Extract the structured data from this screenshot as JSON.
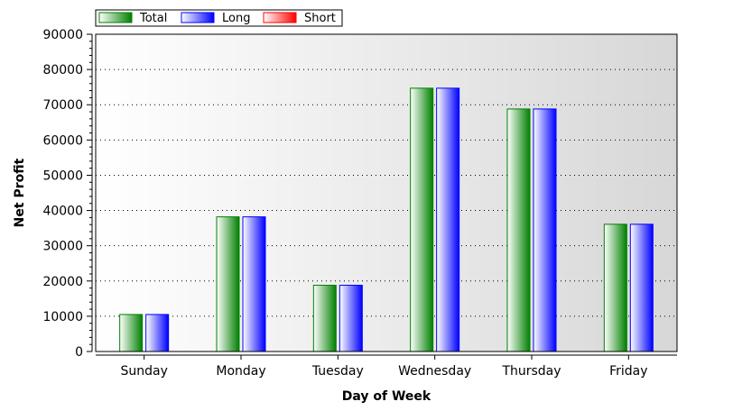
{
  "chart_data": {
    "type": "bar",
    "title": "",
    "xlabel": "Day of Week",
    "ylabel": "Net Profit",
    "categories": [
      "Sunday",
      "Monday",
      "Tuesday",
      "Wednesday",
      "Thursday",
      "Friday"
    ],
    "series": [
      {
        "name": "Total",
        "color": "#008000",
        "values": [
          10500,
          38200,
          18800,
          74700,
          68800,
          36100
        ]
      },
      {
        "name": "Long",
        "color": "#0000ff",
        "values": [
          10500,
          38200,
          18800,
          74700,
          68800,
          36100
        ]
      },
      {
        "name": "Short",
        "color": "#ff0000",
        "values": [
          0,
          0,
          0,
          0,
          0,
          0
        ]
      }
    ],
    "ylim": [
      0,
      90000
    ],
    "yticks": [
      "0",
      "10000",
      "20000",
      "30000",
      "40000",
      "50000",
      "60000",
      "70000",
      "80000",
      "90000"
    ],
    "grid": "horizontal-dotted",
    "legend_position": "top-left"
  }
}
